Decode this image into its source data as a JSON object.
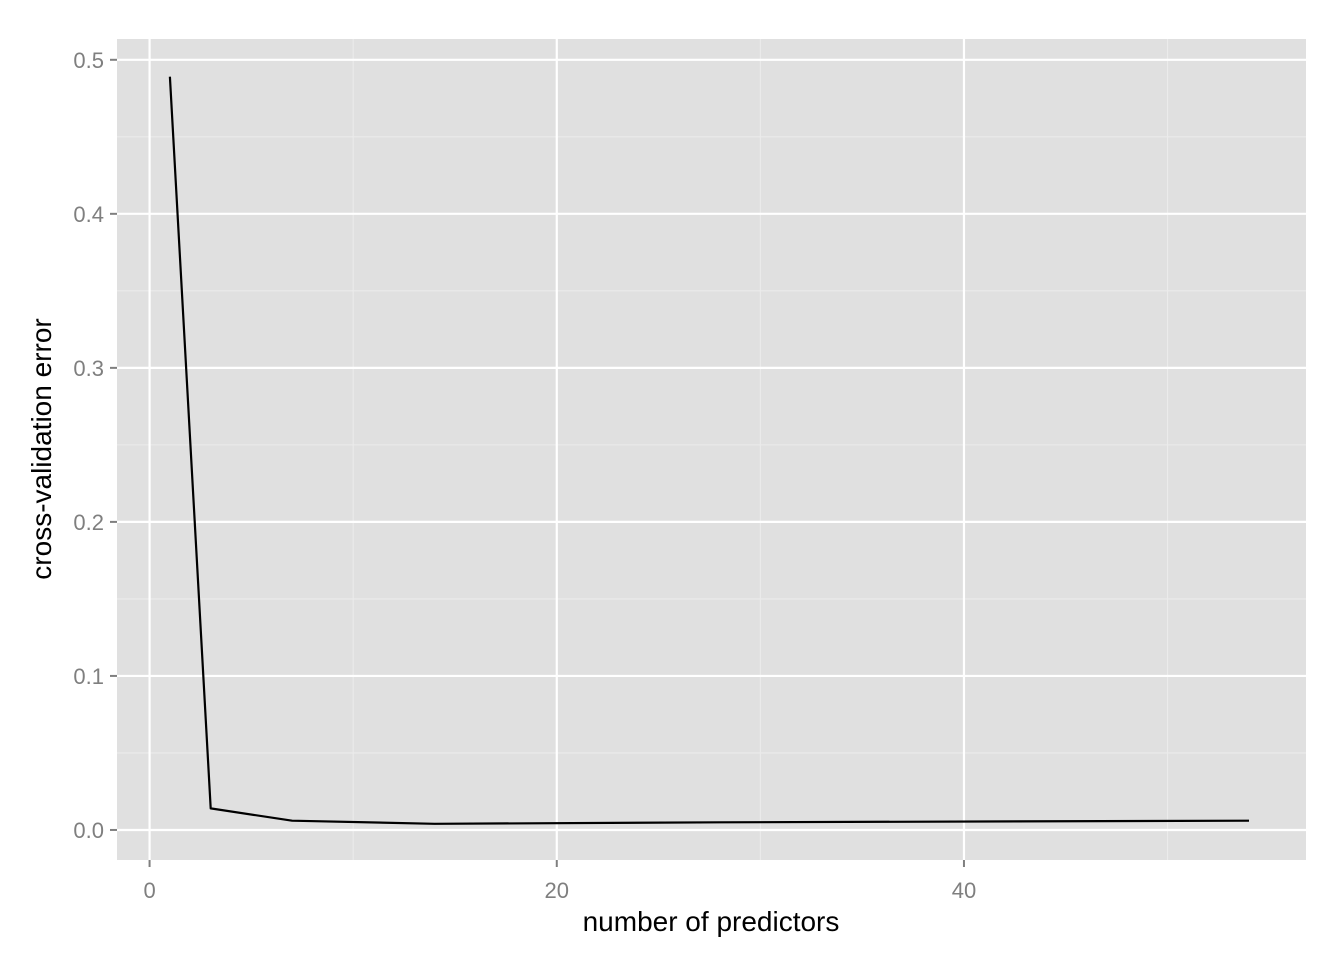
{
  "chart_data": {
    "type": "line",
    "title": "",
    "xlabel": "number of predictors",
    "ylabel": "cross-validation error",
    "xlim": [
      -1.6,
      56.8
    ],
    "ylim": [
      -0.0195,
      0.5135
    ],
    "x_major_ticks": [
      0,
      20,
      40
    ],
    "x_minor_ticks": [
      10,
      30,
      50
    ],
    "y_major_ticks": [
      0.0,
      0.1,
      0.2,
      0.3,
      0.4,
      0.5
    ],
    "y_minor_ticks": [
      0.05,
      0.15,
      0.25,
      0.35,
      0.45
    ],
    "x_tick_labels": [
      "0",
      "20",
      "40"
    ],
    "y_tick_labels": [
      "0.0",
      "0.1",
      "0.2",
      "0.3",
      "0.4",
      "0.5"
    ],
    "grid": true,
    "series": [
      {
        "x": [
          1,
          3,
          7,
          14,
          28,
          54
        ],
        "y": [
          0.489,
          0.014,
          0.006,
          0.004,
          0.005,
          0.006
        ]
      }
    ]
  },
  "colors": {
    "panel_background": "#e0e0e0",
    "grid_major": "#ffffff",
    "grid_minor": "#ebebeb",
    "line": "#000000",
    "tick_text": "#7f7f7f",
    "tick_mark": "#7f7f7f"
  }
}
